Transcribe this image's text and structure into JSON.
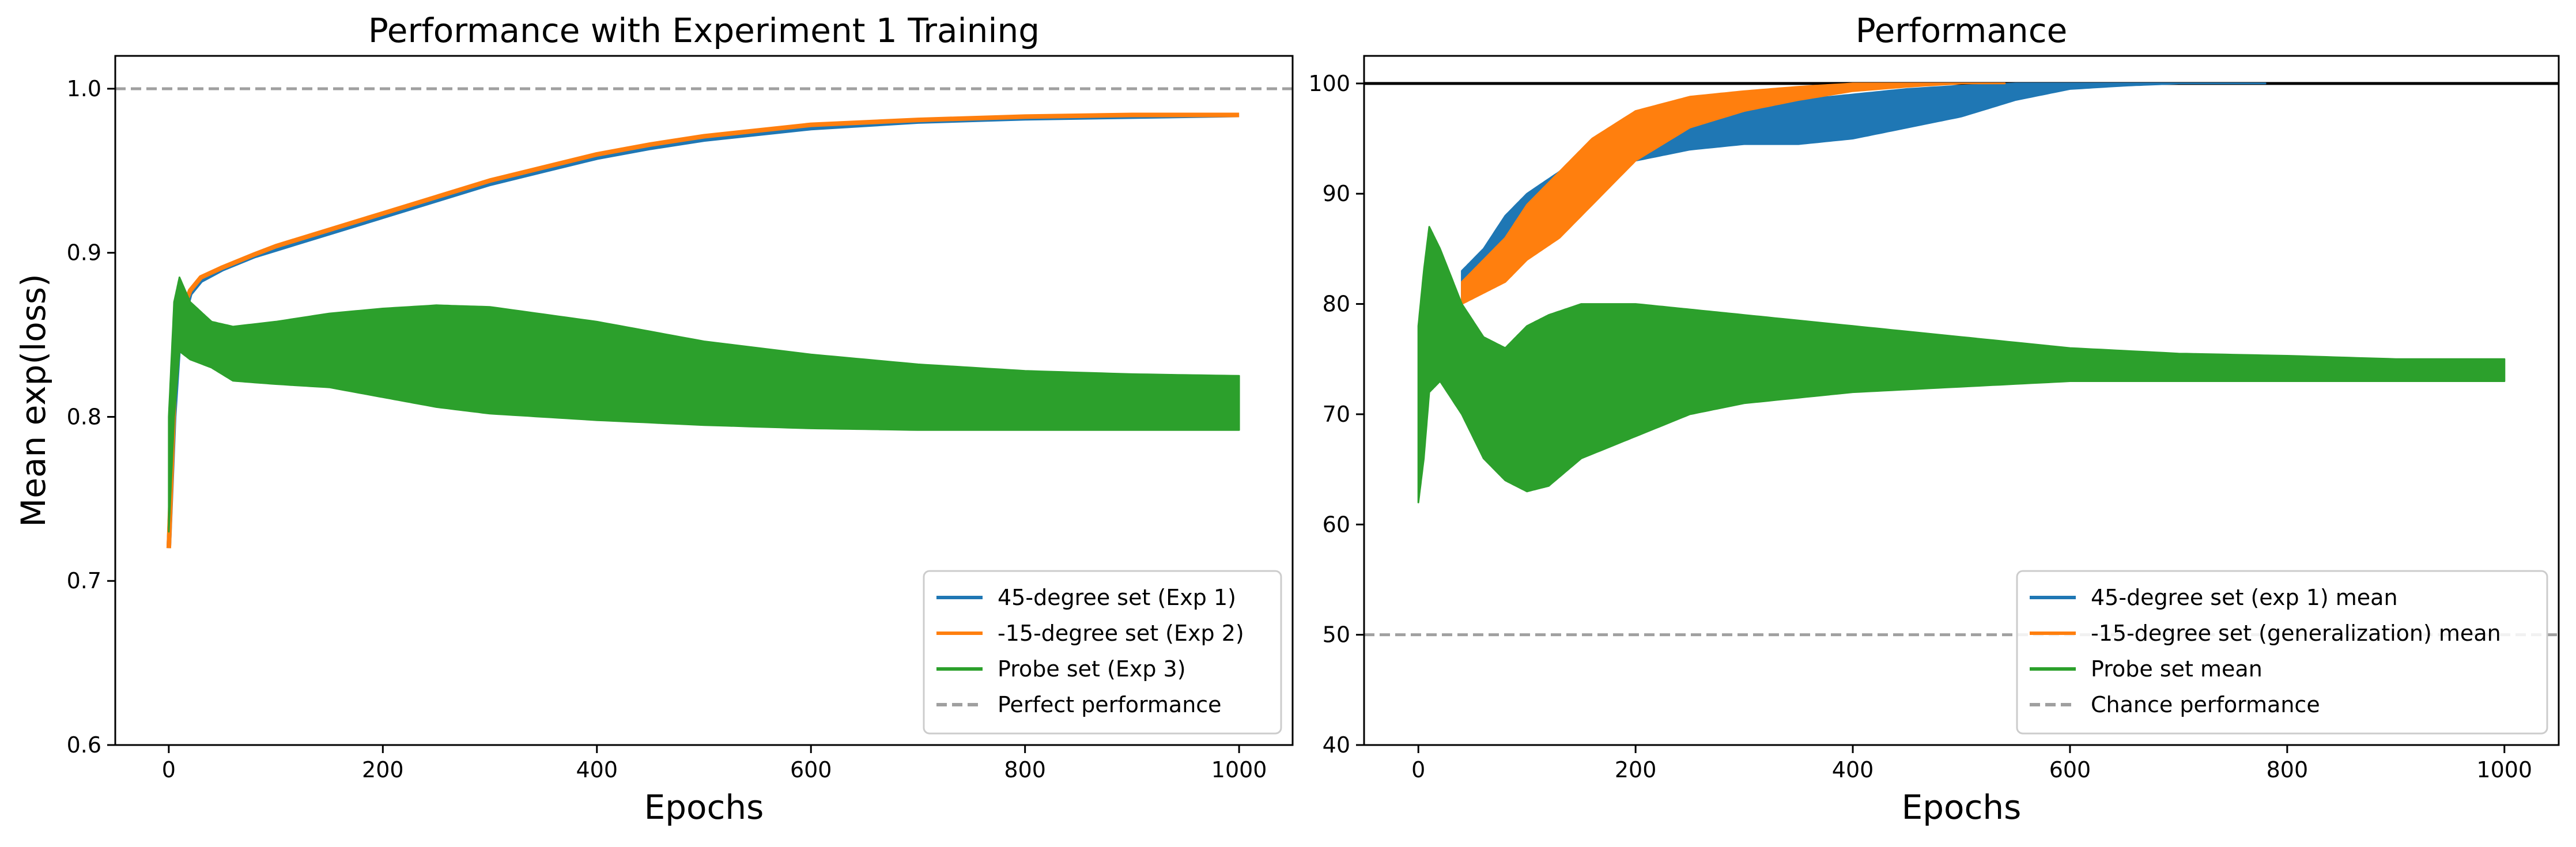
{
  "chart_data": [
    {
      "type": "line",
      "title": "Performance with Experiment 1 Training",
      "xlabel": "Epochs",
      "ylabel": "Mean exp(loss)",
      "xlim": [
        -50,
        1050
      ],
      "ylim": [
        0.6,
        1.02
      ],
      "xticks": [
        0,
        200,
        400,
        600,
        800,
        1000
      ],
      "yticks": [
        0.6,
        0.7,
        0.8,
        0.9,
        1.0
      ],
      "xtick_labels": [
        "0",
        "200",
        "400",
        "600",
        "800",
        "1000"
      ],
      "ytick_labels": [
        "0.6",
        "0.7",
        "0.8",
        "0.9",
        "1.0"
      ],
      "grid": false,
      "legend_position": "lower-right",
      "reference_line": {
        "name": "Perfect performance",
        "y": 1.0,
        "style": "dashed",
        "color": "#a0a0a0"
      },
      "series": [
        {
          "name": "45-degree set (Exp 1)",
          "color": "#1f77b4",
          "x": [
            0,
            5,
            10,
            20,
            30,
            50,
            80,
            100,
            150,
            200,
            250,
            300,
            350,
            400,
            450,
            500,
            600,
            700,
            800,
            900,
            1000
          ],
          "y": [
            0.72,
            0.8,
            0.85,
            0.875,
            0.883,
            0.89,
            0.898,
            0.902,
            0.912,
            0.922,
            0.932,
            0.942,
            0.95,
            0.958,
            0.964,
            0.969,
            0.976,
            0.98,
            0.982,
            0.983,
            0.984
          ]
        },
        {
          "name": "-15-degree set (Exp 2)",
          "color": "#ff7f0e",
          "x": [
            0,
            5,
            10,
            20,
            30,
            50,
            80,
            100,
            150,
            200,
            250,
            300,
            350,
            400,
            450,
            500,
            600,
            700,
            800,
            900,
            1000
          ],
          "y": [
            0.72,
            0.81,
            0.86,
            0.877,
            0.885,
            0.891,
            0.899,
            0.904,
            0.914,
            0.924,
            0.934,
            0.944,
            0.952,
            0.96,
            0.966,
            0.971,
            0.978,
            0.981,
            0.983,
            0.984,
            0.984
          ]
        },
        {
          "name": "Probe set (Exp 3)",
          "color": "#2ca02c",
          "band": true,
          "x": [
            0,
            5,
            10,
            20,
            40,
            60,
            100,
            150,
            200,
            250,
            300,
            400,
            500,
            600,
            700,
            800,
            900,
            1000
          ],
          "lower": [
            0.73,
            0.8,
            0.84,
            0.835,
            0.83,
            0.822,
            0.82,
            0.818,
            0.812,
            0.806,
            0.802,
            0.798,
            0.795,
            0.793,
            0.792,
            0.792,
            0.792,
            0.792
          ],
          "upper": [
            0.8,
            0.87,
            0.885,
            0.87,
            0.858,
            0.855,
            0.858,
            0.863,
            0.866,
            0.868,
            0.867,
            0.858,
            0.846,
            0.838,
            0.832,
            0.828,
            0.826,
            0.825
          ]
        }
      ]
    },
    {
      "type": "line",
      "title": "Performance",
      "xlabel": "Epochs",
      "ylabel": "",
      "xlim": [
        -50,
        1050
      ],
      "ylim": [
        40,
        102.5
      ],
      "xticks": [
        0,
        200,
        400,
        600,
        800,
        1000
      ],
      "yticks": [
        40,
        50,
        60,
        70,
        80,
        90,
        100
      ],
      "xtick_labels": [
        "0",
        "200",
        "400",
        "600",
        "800",
        "1000"
      ],
      "ytick_labels": [
        "40",
        "50",
        "60",
        "70",
        "80",
        "90",
        "100"
      ],
      "grid": false,
      "legend_position": "lower-right",
      "reference_lines": [
        {
          "name": "Chance performance",
          "y": 50,
          "style": "dashed",
          "color": "#a0a0a0"
        },
        {
          "name": "",
          "y": 100,
          "style": "solid",
          "color": "#000000"
        }
      ],
      "series": [
        {
          "name": "45-degree set (exp 1) mean",
          "color": "#1f77b4",
          "band": true,
          "x": [
            40,
            60,
            80,
            100,
            130,
            160,
            200,
            250,
            300,
            350,
            400,
            450,
            500,
            550,
            600,
            650,
            700,
            750,
            780
          ],
          "lower": [
            80,
            83,
            85,
            87,
            89,
            91,
            93,
            94,
            94.5,
            94.5,
            95,
            96,
            97,
            98.5,
            99.5,
            99.8,
            100,
            100,
            100
          ],
          "upper": [
            83,
            85,
            88,
            90,
            92,
            94,
            96,
            97,
            98,
            98.5,
            99,
            99.5,
            99.8,
            100,
            100,
            100,
            100,
            100,
            100
          ]
        },
        {
          "name": "-15-degree set (generalization) mean",
          "color": "#ff7f0e",
          "band": true,
          "x": [
            40,
            60,
            80,
            100,
            130,
            160,
            200,
            250,
            300,
            350,
            400,
            450,
            500,
            540
          ],
          "lower": [
            80,
            81,
            82,
            84,
            86,
            89,
            93,
            96,
            97.5,
            98.5,
            99.3,
            99.7,
            100,
            100
          ],
          "upper": [
            82,
            84,
            86,
            89,
            92,
            95,
            97.5,
            98.8,
            99.3,
            99.7,
            100,
            100,
            100,
            100
          ]
        },
        {
          "name": "Probe set mean",
          "color": "#2ca02c",
          "band": true,
          "x": [
            0,
            5,
            10,
            20,
            40,
            60,
            80,
            100,
            120,
            150,
            200,
            250,
            300,
            400,
            500,
            600,
            700,
            800,
            900,
            1000
          ],
          "lower": [
            62,
            66,
            72,
            73,
            70,
            66,
            64,
            63,
            63.5,
            66,
            68,
            70,
            71,
            72,
            72.5,
            73,
            73,
            73,
            73,
            73
          ],
          "upper": [
            78,
            83,
            87,
            85,
            80,
            77,
            76,
            78,
            79,
            80,
            80,
            79.5,
            79,
            78,
            77,
            76,
            75.5,
            75.3,
            75,
            75
          ]
        }
      ]
    }
  ]
}
